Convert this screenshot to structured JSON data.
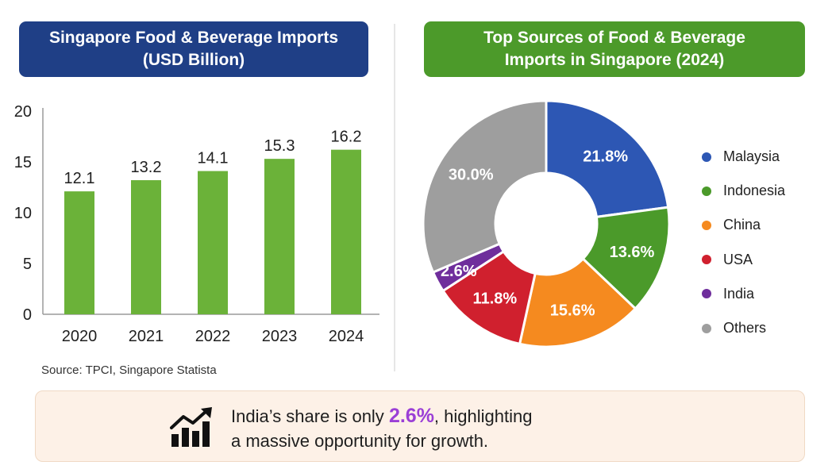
{
  "left_title": [
    "Singapore Food & Beverage Imports",
    "(USD Billion)"
  ],
  "right_title": [
    "Top Sources of Food & Beverage",
    "Imports in Singapore (2024)"
  ],
  "source": "Source: TPCI, Singapore Statista",
  "insight": {
    "prefix": "India’s share is only ",
    "highlight": "2.6%",
    "suffix": ", highlighting",
    "line2": "a massive opportunity for growth."
  },
  "icon": "growth-chart-icon",
  "chart_data": [
    {
      "type": "bar",
      "title": "Singapore Food & Beverage Imports (USD Billion)",
      "categories": [
        "2020",
        "2021",
        "2022",
        "2023",
        "2024"
      ],
      "values": [
        12.1,
        13.2,
        14.1,
        15.3,
        16.2
      ],
      "value_labels": [
        "12.1",
        "13.2",
        "14.1",
        "15.3",
        "16.2"
      ],
      "yticks": [
        0,
        5,
        10,
        15,
        20
      ],
      "ylim": [
        0,
        20
      ],
      "grid": false,
      "bar_color": "#6bb239"
    },
    {
      "type": "pie",
      "donut": true,
      "title": "Top Sources of Food & Beverage Imports in Singapore (2024)",
      "legend_position": "right",
      "slices": [
        {
          "label": "Malaysia",
          "value": 21.8,
          "display": "21.8%",
          "color": "#2d57b4"
        },
        {
          "label": "Indonesia",
          "value": 13.6,
          "display": "13.6%",
          "color": "#4b9a2a"
        },
        {
          "label": "China",
          "value": 15.6,
          "display": "15.6%",
          "color": "#f58a1f"
        },
        {
          "label": "USA",
          "value": 11.8,
          "display": "11.8%",
          "color": "#d0202e"
        },
        {
          "label": "India",
          "value": 2.6,
          "display": "2.6%",
          "color": "#6f2e9c"
        },
        {
          "label": "Others",
          "value": 30.0,
          "display": "30.0%",
          "color": "#9e9e9e"
        }
      ]
    }
  ]
}
